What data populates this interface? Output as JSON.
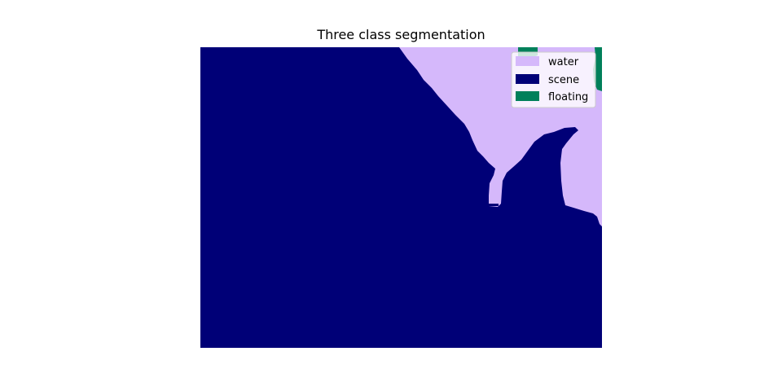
{
  "chart_data": {
    "type": "heatmap",
    "title": "Three class segmentation",
    "classes": [
      {
        "name": "water",
        "color": "#d5b8fb"
      },
      {
        "name": "scene",
        "color": "#000077"
      },
      {
        "name": "floating",
        "color": "#00805a"
      }
    ],
    "legend_placement": "top-right",
    "axes_visible": false
  }
}
